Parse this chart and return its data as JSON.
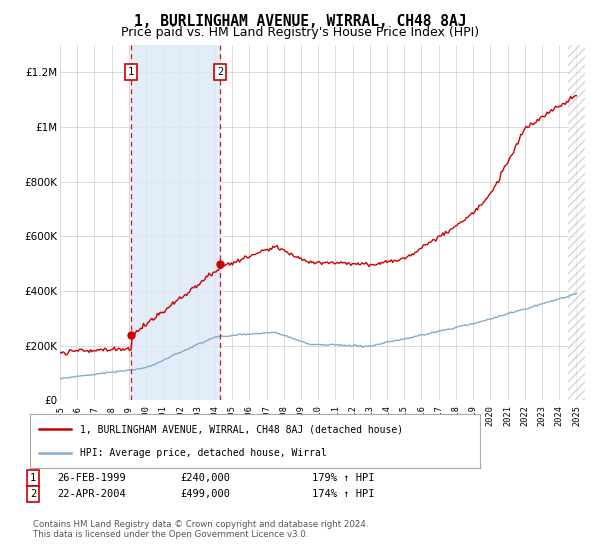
{
  "title": "1, BURLINGHAM AVENUE, WIRRAL, CH48 8AJ",
  "subtitle": "Price paid vs. HM Land Registry's House Price Index (HPI)",
  "legend_label_red": "1, BURLINGHAM AVENUE, WIRRAL, CH48 8AJ (detached house)",
  "legend_label_blue": "HPI: Average price, detached house, Wirral",
  "footer": "Contains HM Land Registry data © Crown copyright and database right 2024.\nThis data is licensed under the Open Government Licence v3.0.",
  "sale1_date": "26-FEB-1999",
  "sale1_price": 240000,
  "sale1_x": 1999.14,
  "sale1_hpi_pct": "179%",
  "sale2_date": "22-APR-2004",
  "sale2_price": 499000,
  "sale2_x": 2004.31,
  "sale2_hpi_pct": "174%",
  "ylim": [
    0,
    1300000
  ],
  "xlim_min": 1995.0,
  "xlim_max": 2025.5,
  "background_color": "#ffffff",
  "shade_color": "#dce9f5",
  "red_color": "#cc0000",
  "blue_color": "#88aacc",
  "marker_box_color": "#cc0000",
  "title_fontsize": 10.5,
  "subtitle_fontsize": 9,
  "yticks": [
    0,
    200000,
    400000,
    600000,
    800000,
    1000000,
    1200000
  ]
}
